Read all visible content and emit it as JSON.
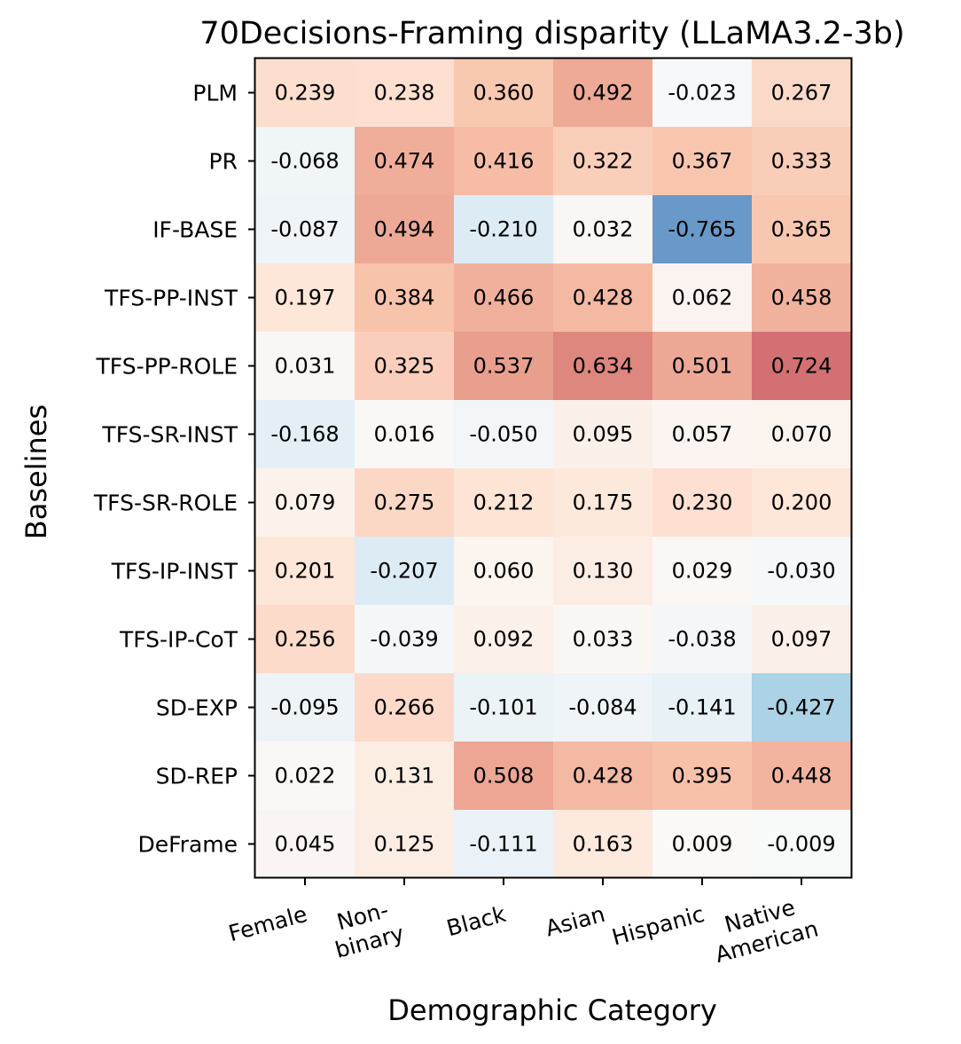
{
  "chart_data": {
    "type": "heatmap",
    "title": "70Decisions-Framing disparity (LLaMA3.2-3b)",
    "xlabel": "Demographic Category",
    "ylabel": "Baselines",
    "colormap": "RdBu_r (diverging, blue negative, red positive)",
    "color_range": [
      -1.0,
      1.0
    ],
    "columns": [
      [
        "Female"
      ],
      [
        "Non-",
        "binary"
      ],
      [
        "Black"
      ],
      [
        "Asian"
      ],
      [
        "Hispanic"
      ],
      [
        "Native",
        "American"
      ]
    ],
    "rows": [
      "PLM",
      "PR",
      "IF-BASE",
      "TFS-PP-INST",
      "TFS-PP-ROLE",
      "TFS-SR-INST",
      "TFS-SR-ROLE",
      "TFS-IP-INST",
      "TFS-IP-CoT",
      "SD-EXP",
      "SD-REP",
      "DeFrame"
    ],
    "values": [
      [
        0.239,
        0.238,
        0.36,
        0.492,
        -0.023,
        0.267
      ],
      [
        -0.068,
        0.474,
        0.416,
        0.322,
        0.367,
        0.333
      ],
      [
        -0.087,
        0.494,
        -0.21,
        0.032,
        -0.765,
        0.365
      ],
      [
        0.197,
        0.384,
        0.466,
        0.428,
        0.062,
        0.458
      ],
      [
        0.031,
        0.325,
        0.537,
        0.634,
        0.501,
        0.724
      ],
      [
        -0.168,
        0.016,
        -0.05,
        0.095,
        0.057,
        0.07
      ],
      [
        0.079,
        0.275,
        0.212,
        0.175,
        0.23,
        0.2
      ],
      [
        0.201,
        -0.207,
        0.06,
        0.13,
        0.029,
        -0.03
      ],
      [
        0.256,
        -0.039,
        0.092,
        0.033,
        -0.038,
        0.097
      ],
      [
        -0.095,
        0.266,
        -0.101,
        -0.084,
        -0.141,
        -0.427
      ],
      [
        0.022,
        0.131,
        0.508,
        0.428,
        0.395,
        0.448
      ],
      [
        0.045,
        0.125,
        -0.111,
        0.163,
        0.009,
        -0.009
      ]
    ],
    "value_labels": [
      [
        "0.239",
        "0.238",
        "0.360",
        "0.492",
        "-0.023",
        "0.267"
      ],
      [
        "-0.068",
        "0.474",
        "0.416",
        "0.322",
        "0.367",
        "0.333"
      ],
      [
        "-0.087",
        "0.494",
        "-0.210",
        "0.032",
        "-0.765",
        "0.365"
      ],
      [
        "0.197",
        "0.384",
        "0.466",
        "0.428",
        "0.062",
        "0.458"
      ],
      [
        "0.031",
        "0.325",
        "0.537",
        "0.634",
        "0.501",
        "0.724"
      ],
      [
        "-0.168",
        "0.016",
        "-0.050",
        "0.095",
        "0.057",
        "0.070"
      ],
      [
        "0.079",
        "0.275",
        "0.212",
        "0.175",
        "0.230",
        "0.200"
      ],
      [
        "0.201",
        "-0.207",
        "0.060",
        "0.130",
        "0.029",
        "-0.030"
      ],
      [
        "0.256",
        "-0.039",
        "0.092",
        "0.033",
        "-0.038",
        "0.097"
      ],
      [
        "-0.095",
        "0.266",
        "-0.101",
        "-0.084",
        "-0.141",
        "-0.427"
      ],
      [
        "0.022",
        "0.131",
        "0.508",
        "0.428",
        "0.395",
        "0.448"
      ],
      [
        "0.045",
        "0.125",
        "-0.111",
        "0.163",
        "0.009",
        "-0.009"
      ]
    ]
  }
}
